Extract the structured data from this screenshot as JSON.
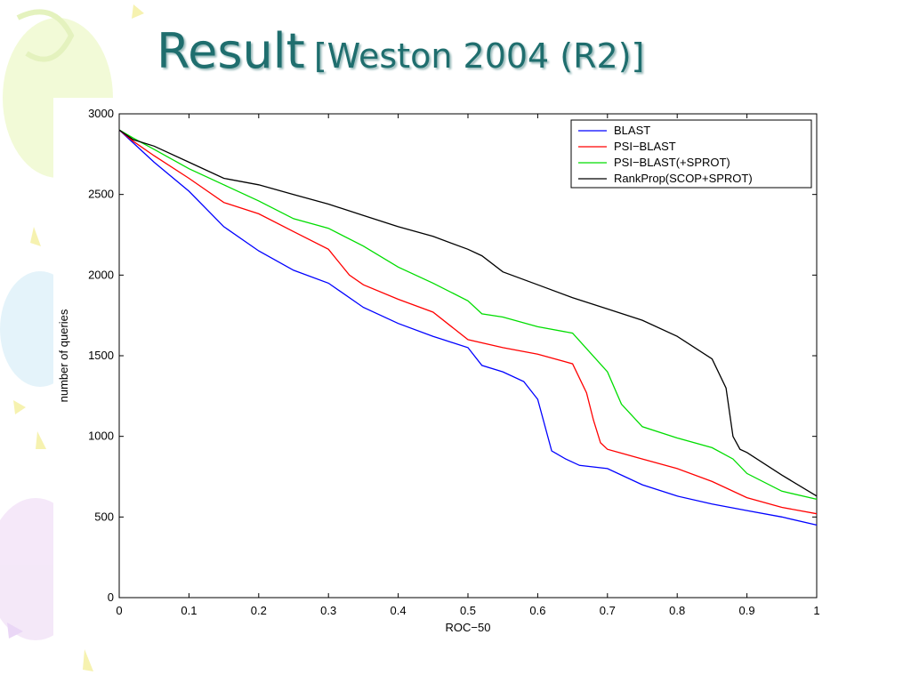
{
  "slide": {
    "title_main": "Result",
    "title_sub": "[Weston 2004 (R2)]",
    "title_color": "#1f6e6e"
  },
  "chart_data": {
    "type": "line",
    "title": "",
    "xlabel": "ROC−50",
    "ylabel": "number of queries",
    "xlim": [
      0,
      1
    ],
    "ylim": [
      0,
      3000
    ],
    "xticks": [
      "0",
      "0.1",
      "0.2",
      "0.3",
      "0.4",
      "0.5",
      "0.6",
      "0.7",
      "0.8",
      "0.9",
      "1"
    ],
    "yticks": [
      "0",
      "500",
      "1000",
      "1500",
      "2000",
      "2500",
      "3000"
    ],
    "grid": false,
    "legend_position": "top-right",
    "series": [
      {
        "name": "BLAST",
        "color": "#0000ff",
        "x": [
          0,
          0.02,
          0.05,
          0.1,
          0.15,
          0.2,
          0.25,
          0.3,
          0.35,
          0.4,
          0.45,
          0.5,
          0.52,
          0.55,
          0.58,
          0.6,
          0.62,
          0.64,
          0.66,
          0.7,
          0.75,
          0.8,
          0.85,
          0.9,
          0.95,
          1
        ],
        "y": [
          2900,
          2820,
          2700,
          2520,
          2300,
          2150,
          2030,
          1950,
          1800,
          1700,
          1620,
          1550,
          1440,
          1400,
          1340,
          1230,
          910,
          860,
          820,
          800,
          700,
          630,
          580,
          540,
          500,
          450
        ]
      },
      {
        "name": "PSI−BLAST",
        "color": "#ff0000",
        "x": [
          0,
          0.02,
          0.05,
          0.1,
          0.15,
          0.2,
          0.25,
          0.3,
          0.33,
          0.35,
          0.4,
          0.45,
          0.5,
          0.55,
          0.6,
          0.65,
          0.67,
          0.68,
          0.69,
          0.7,
          0.75,
          0.8,
          0.85,
          0.9,
          0.95,
          1
        ],
        "y": [
          2900,
          2830,
          2740,
          2600,
          2450,
          2380,
          2270,
          2160,
          2000,
          1940,
          1850,
          1770,
          1600,
          1550,
          1510,
          1450,
          1270,
          1100,
          960,
          920,
          860,
          800,
          720,
          620,
          560,
          520
        ]
      },
      {
        "name": "PSI−BLAST(+SPROT)",
        "color": "#00dd00",
        "x": [
          0,
          0.02,
          0.05,
          0.1,
          0.15,
          0.2,
          0.25,
          0.3,
          0.35,
          0.4,
          0.45,
          0.5,
          0.52,
          0.55,
          0.6,
          0.65,
          0.7,
          0.72,
          0.75,
          0.8,
          0.85,
          0.88,
          0.9,
          0.95,
          1
        ],
        "y": [
          2900,
          2850,
          2780,
          2660,
          2560,
          2460,
          2350,
          2290,
          2180,
          2050,
          1950,
          1840,
          1760,
          1740,
          1680,
          1640,
          1400,
          1200,
          1060,
          990,
          930,
          860,
          770,
          660,
          610
        ]
      },
      {
        "name": "RankProp(SCOP+SPROT)",
        "color": "#000000",
        "x": [
          0,
          0.02,
          0.05,
          0.1,
          0.15,
          0.2,
          0.25,
          0.3,
          0.35,
          0.4,
          0.45,
          0.5,
          0.52,
          0.55,
          0.6,
          0.65,
          0.7,
          0.75,
          0.8,
          0.85,
          0.87,
          0.88,
          0.89,
          0.9,
          0.95,
          1
        ],
        "y": [
          2900,
          2840,
          2800,
          2700,
          2600,
          2560,
          2500,
          2440,
          2370,
          2300,
          2240,
          2160,
          2120,
          2020,
          1940,
          1860,
          1790,
          1720,
          1620,
          1480,
          1300,
          1000,
          920,
          900,
          760,
          630
        ]
      }
    ]
  }
}
